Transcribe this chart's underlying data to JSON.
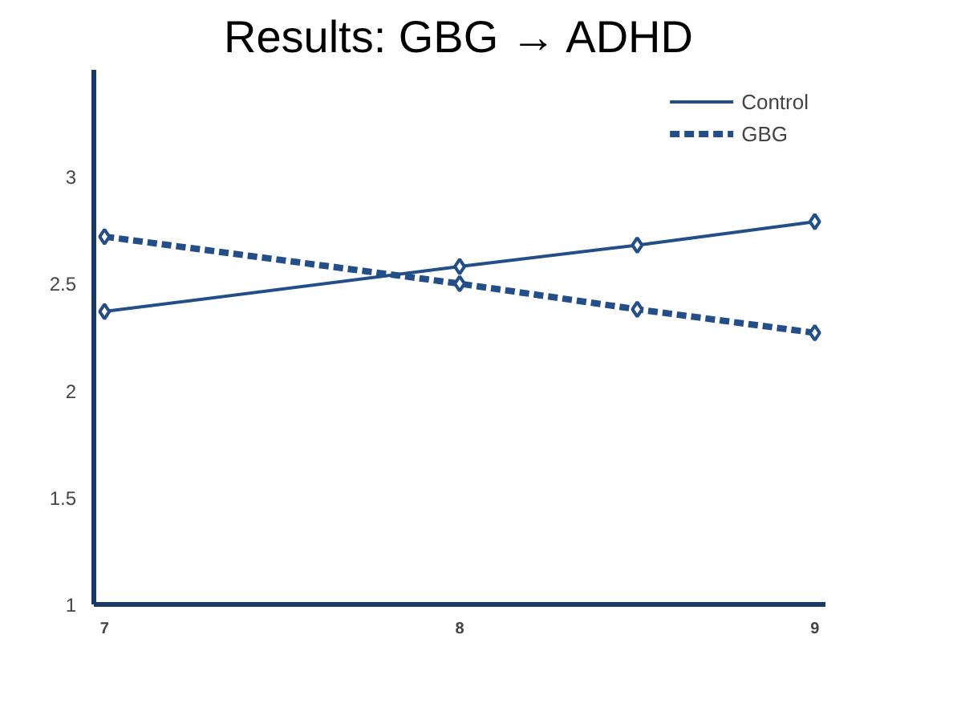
{
  "chart_data": {
    "type": "line",
    "title": "Results: GBG → ADHD",
    "x": [
      7,
      8,
      8.5,
      9
    ],
    "series": [
      {
        "name": "Control",
        "color": "#244e87",
        "values": [
          2.37,
          2.58,
          2.68,
          2.79
        ],
        "line_style": "solid"
      },
      {
        "name": "GBG",
        "color": "#244e87",
        "values": [
          2.72,
          2.5,
          2.38,
          2.27
        ],
        "line_style": "dashed"
      }
    ],
    "xlim": [
      6.97,
      9.03
    ],
    "xticks": [
      7,
      8,
      9
    ],
    "ylim": [
      1,
      3.5
    ],
    "yticks": [
      1,
      1.5,
      2,
      2.5,
      3
    ],
    "marker": "diamond",
    "legend": "top right",
    "grid": false
  }
}
